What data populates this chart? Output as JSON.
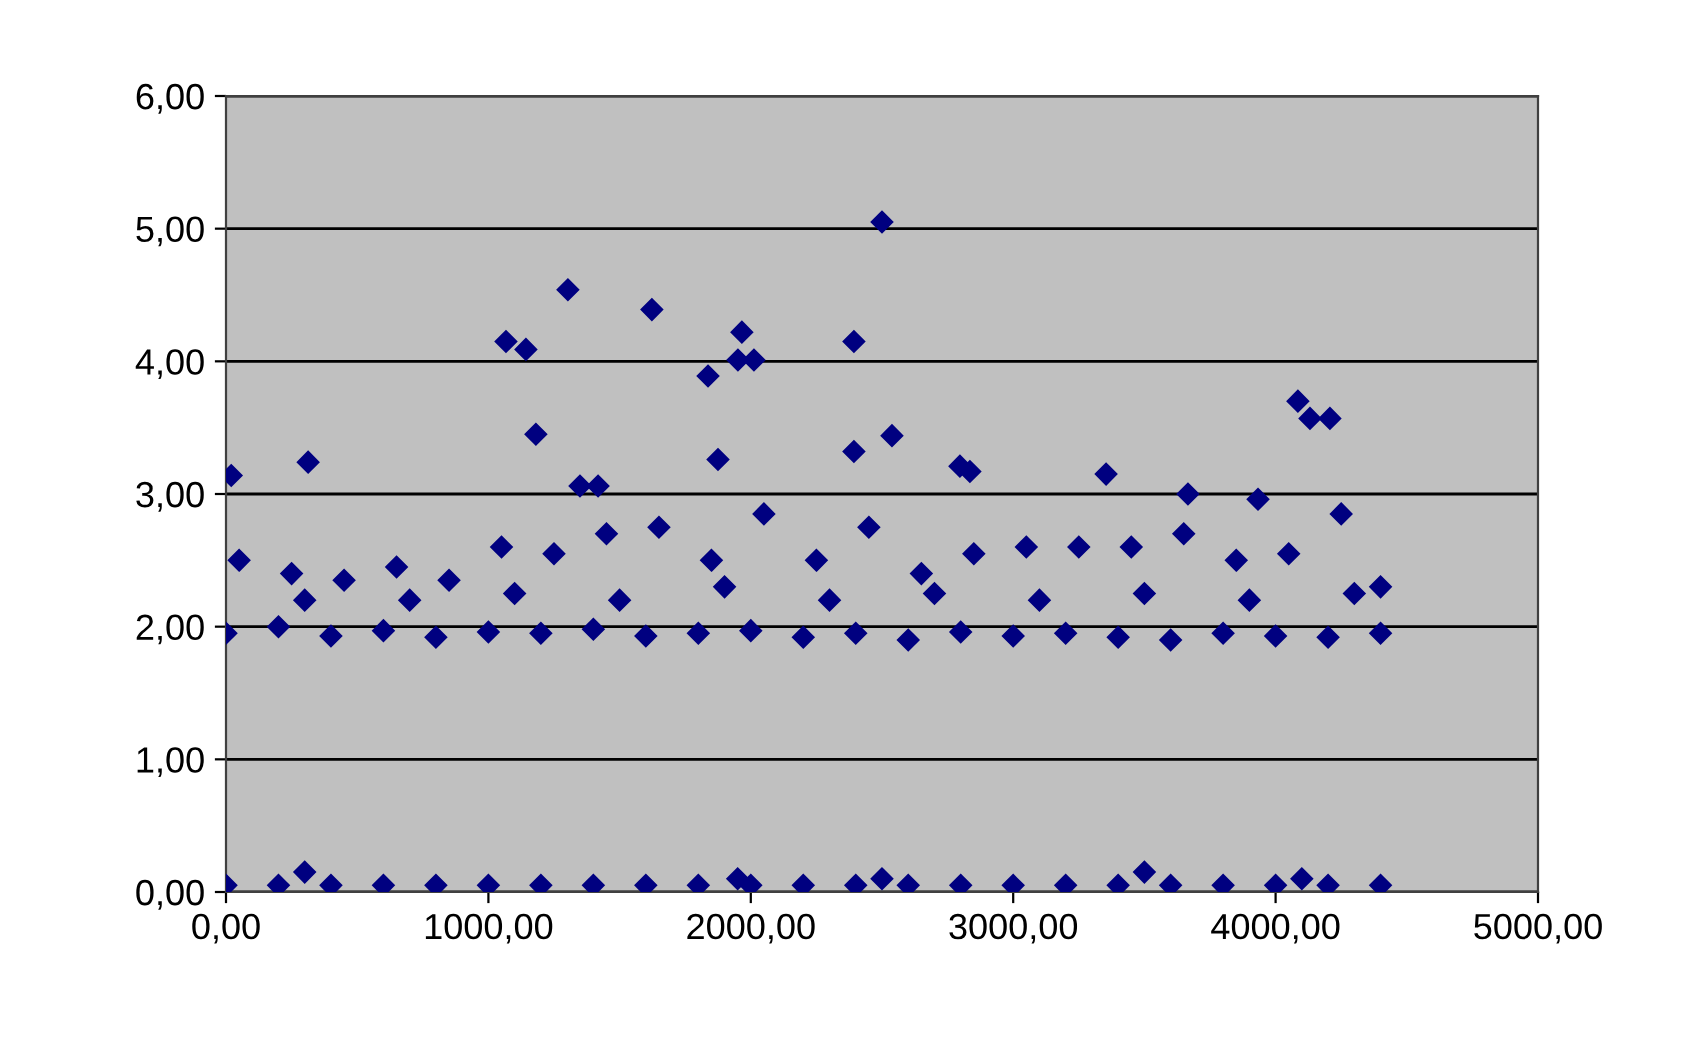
{
  "chart_data": {
    "type": "scatter",
    "marker": "diamond",
    "grid": "y",
    "legend": false,
    "xlim": [
      0,
      5000
    ],
    "ylim": [
      0,
      6
    ],
    "xticks": [
      {
        "value": 0,
        "label": "0,00"
      },
      {
        "value": 1000,
        "label": "1000,00"
      },
      {
        "value": 2000,
        "label": "2000,00"
      },
      {
        "value": 3000,
        "label": "3000,00"
      },
      {
        "value": 4000,
        "label": "4000,00"
      },
      {
        "value": 5000,
        "label": "5000,00"
      }
    ],
    "yticks": [
      {
        "value": 0,
        "label": "0,00"
      },
      {
        "value": 1,
        "label": "1,00"
      },
      {
        "value": 2,
        "label": "2,00"
      },
      {
        "value": 3,
        "label": "3,00"
      },
      {
        "value": 4,
        "label": "4,00"
      },
      {
        "value": 5,
        "label": "5,00"
      },
      {
        "value": 6,
        "label": "6,00"
      }
    ],
    "series": [
      {
        "color": "#000080",
        "x": [
          0,
          200,
          400,
          600,
          800,
          1000,
          1200,
          1400,
          1600,
          1800,
          2000,
          2200,
          2400,
          2600,
          2800,
          3000,
          3200,
          3400,
          3600,
          3800,
          4000,
          4200,
          4400,
          50,
          250,
          450,
          650,
          850,
          1050,
          1250,
          1450,
          1650,
          1850,
          2050,
          2250,
          2450,
          2650,
          2850,
          3050,
          3250,
          3450,
          3650,
          3850,
          4050,
          4250,
          4400,
          300,
          700,
          1100,
          1500,
          1900,
          2300,
          2700,
          3100,
          3500,
          3900,
          4300,
          0,
          200,
          400,
          600,
          800,
          1000,
          1200,
          1400,
          1600,
          1800,
          2000,
          2200,
          2400,
          2600,
          2800,
          3000,
          3200,
          3400,
          3600,
          3800,
          4000,
          4200,
          4400,
          300,
          1950,
          2500,
          3500,
          4100,
          20,
          313,
          1067,
          1143,
          1181,
          1303,
          1349,
          1418,
          1623,
          1837,
          1875,
          1951,
          1966,
          2012,
          2393,
          2393,
          2500,
          2538,
          2797,
          2835,
          3354,
          3666,
          3933,
          4085,
          4131,
          4207
        ],
        "values": [
          1.95,
          2.0,
          1.93,
          1.97,
          1.92,
          1.96,
          1.95,
          1.98,
          1.93,
          1.95,
          1.97,
          1.92,
          1.95,
          1.9,
          1.96,
          1.93,
          1.95,
          1.92,
          1.9,
          1.95,
          1.93,
          1.92,
          1.95,
          2.5,
          2.4,
          2.35,
          2.45,
          2.35,
          2.6,
          2.55,
          2.7,
          2.75,
          2.5,
          2.85,
          2.5,
          2.75,
          2.4,
          2.55,
          2.6,
          2.6,
          2.6,
          2.7,
          2.5,
          2.55,
          2.85,
          2.3,
          2.2,
          2.2,
          2.25,
          2.2,
          2.3,
          2.2,
          2.25,
          2.2,
          2.25,
          2.2,
          2.25,
          0.05,
          0.05,
          0.05,
          0.05,
          0.05,
          0.05,
          0.05,
          0.05,
          0.05,
          0.05,
          0.05,
          0.05,
          0.05,
          0.05,
          0.05,
          0.05,
          0.05,
          0.05,
          0.05,
          0.05,
          0.05,
          0.05,
          0.05,
          0.15,
          0.1,
          0.1,
          0.15,
          0.1,
          3.14,
          3.24,
          4.15,
          4.09,
          3.45,
          4.54,
          3.06,
          3.06,
          4.39,
          3.89,
          3.26,
          4.01,
          4.22,
          4.01,
          4.15,
          3.32,
          5.05,
          3.44,
          3.21,
          3.17,
          3.15,
          3.0,
          2.96,
          3.7,
          3.57,
          3.57
        ]
      }
    ]
  }
}
